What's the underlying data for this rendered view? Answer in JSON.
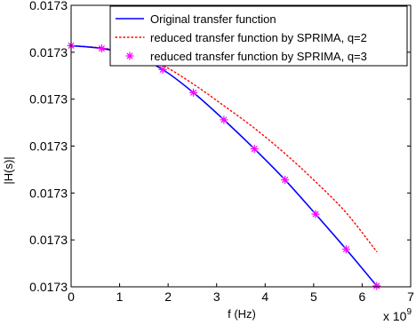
{
  "chart_data": {
    "type": "line",
    "title": "",
    "xlabel": "f (Hz)",
    "ylabel": "|H(s)|",
    "x_multiplier": "x 10",
    "x_exponent": "9",
    "xlim": [
      0,
      7000000000
    ],
    "ylim": [
      0,
      6
    ],
    "x_tick_labels": [
      "0",
      "1",
      "2",
      "3",
      "4",
      "5",
      "6",
      "7"
    ],
    "y_tick_labels": [
      "0.0173",
      "0.0173",
      "0.0173",
      "0.0173",
      "0.0173",
      "0.0173",
      "0.0173"
    ],
    "grid": false,
    "legend_position": "top-right",
    "series": [
      {
        "name": "Original transfer function",
        "style": "solid",
        "color": "#0000ff",
        "x": [
          0,
          630000000,
          1260000000,
          1890000000,
          2520000000,
          3150000000,
          3780000000,
          4410000000,
          5040000000,
          5670000000,
          6300000000
        ],
        "y": [
          5.14,
          5.08,
          4.94,
          4.63,
          4.14,
          3.56,
          2.94,
          2.28,
          1.55,
          0.8,
          0.02
        ]
      },
      {
        "name": "reduced transfer function by SPRIMA, q=2",
        "style": "dotted",
        "color": "#ff0000",
        "x": [
          0,
          630000000,
          1260000000,
          1890000000,
          2520000000,
          3150000000,
          3780000000,
          4410000000,
          5040000000,
          5670000000,
          6300000000
        ],
        "y": [
          5.14,
          5.09,
          4.97,
          4.72,
          4.32,
          3.86,
          3.38,
          2.84,
          2.24,
          1.58,
          0.75
        ]
      },
      {
        "name": "reduced transfer function by SPRIMA, q=3",
        "style": "markers",
        "color": "#ff00ff",
        "x": [
          0,
          630000000,
          1260000000,
          1890000000,
          2520000000,
          3150000000,
          3780000000,
          4410000000,
          5040000000,
          5670000000,
          6300000000
        ],
        "y": [
          5.14,
          5.08,
          4.94,
          4.63,
          4.14,
          3.56,
          2.94,
          2.28,
          1.55,
          0.8,
          0.02
        ]
      }
    ]
  }
}
